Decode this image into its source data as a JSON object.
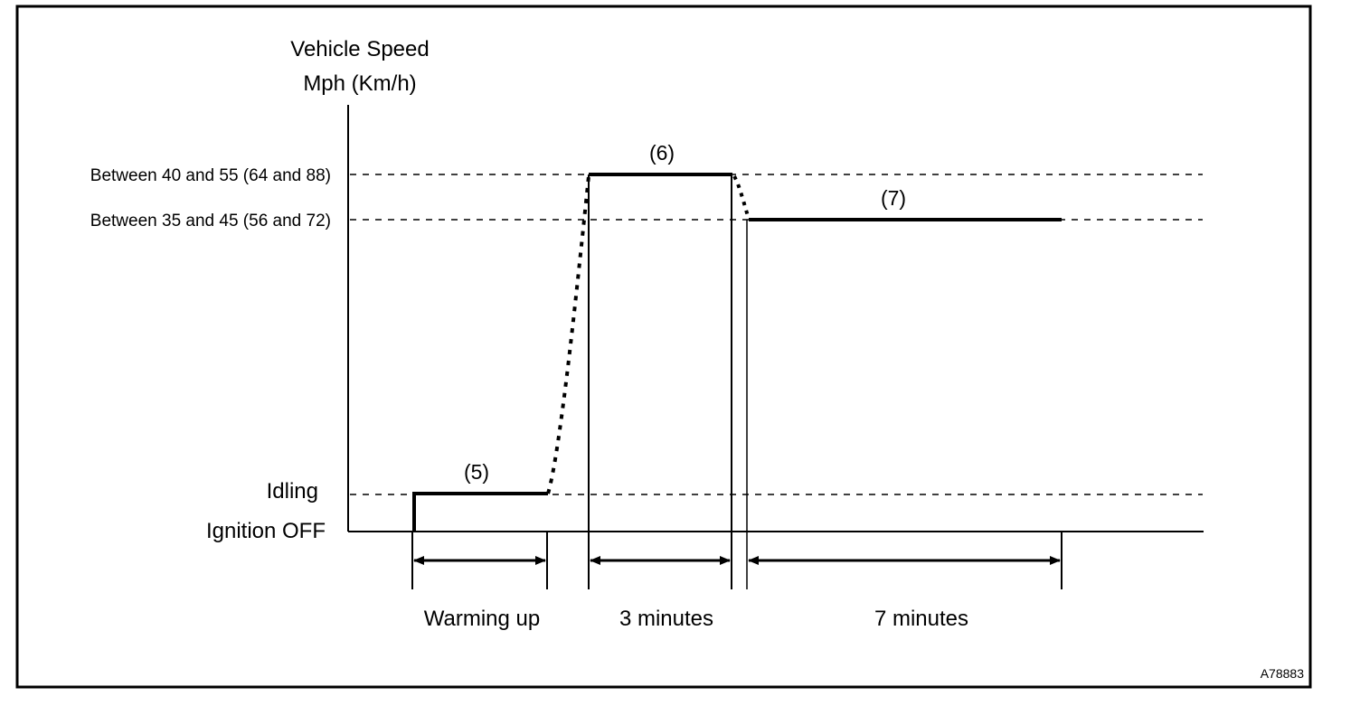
{
  "diagram": {
    "y_axis_title_line1": "Vehicle Speed",
    "y_axis_title_line2": "Mph (Km/h)",
    "levels": {
      "high": "Between 40 and 55 (64 and 88)",
      "mid": "Between 35 and 45 (56 and 72)",
      "idling": "Idling",
      "off": "Ignition OFF"
    },
    "steps": {
      "step5": "(5)",
      "step6": "(6)",
      "step7": "(7)"
    },
    "durations": {
      "warming": "Warming up",
      "three": "3 minutes",
      "seven": "7 minutes"
    },
    "figure_id": "A78883"
  }
}
